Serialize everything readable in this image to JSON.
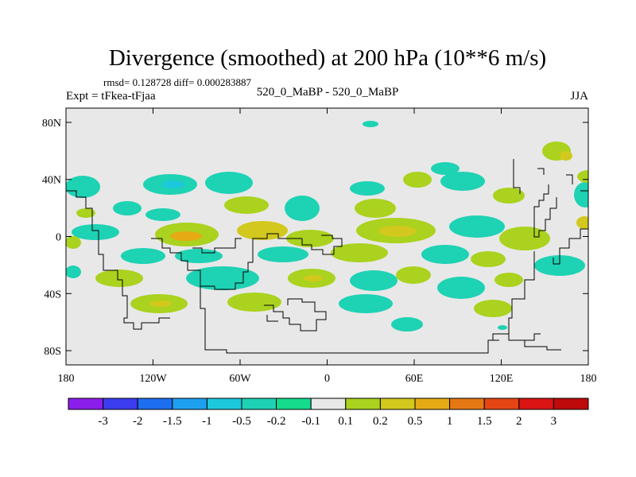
{
  "figure": {
    "title": "Divergence (smoothed) at 200 hPa (10**6 m/s)",
    "stats": "rmsd= 0.128728 diff= 0.000283887",
    "left_label": "Expt = tFkea-tFjaa",
    "center_label": "520_0_MaBP - 520_0_MaBP",
    "right_label": "JJA"
  },
  "map": {
    "lon_ticks": [
      {
        "value": -180,
        "label": "180"
      },
      {
        "value": -120,
        "label": "120W"
      },
      {
        "value": -60,
        "label": "60W"
      },
      {
        "value": 0,
        "label": "0"
      },
      {
        "value": 60,
        "label": "60E"
      },
      {
        "value": 120,
        "label": "120E"
      },
      {
        "value": 180,
        "label": "180"
      }
    ],
    "lat_ticks": [
      {
        "value": 80,
        "label": "80N"
      },
      {
        "value": 40,
        "label": "40N"
      },
      {
        "value": 0,
        "label": "0"
      },
      {
        "value": -40,
        "label": "40S"
      },
      {
        "value": -80,
        "label": "80S"
      }
    ],
    "lon_range": [
      -180,
      180
    ],
    "lat_range": [
      -90,
      90
    ],
    "missing_color": "#e8e8e8"
  },
  "colorbar": {
    "labels": [
      "-3",
      "-2",
      "-1.5",
      "-1",
      "-0.5",
      "-0.2",
      "-0.1",
      "0.1",
      "0.2",
      "0.5",
      "1",
      "1.5",
      "2",
      "3"
    ],
    "colors": [
      "#8c1eeb",
      "#3c3cf0",
      "#1e6ef0",
      "#1ea0f0",
      "#1ec8dc",
      "#1ed2b4",
      "#14dc8c",
      "#e8e8e8",
      "#aad21e",
      "#d2c81e",
      "#e6aa14",
      "#e67814",
      "#e64614",
      "#dc1414",
      "#be0a0a"
    ]
  }
}
